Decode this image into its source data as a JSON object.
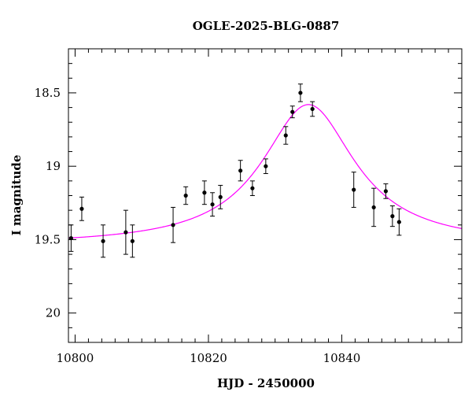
{
  "chart_data": {
    "type": "scatter",
    "title": "OGLE-2025-BLG-0887",
    "xlabel": "HJD - 2450000",
    "ylabel": "I magnitude",
    "xlim": [
      10799,
      10858
    ],
    "ylim": [
      20.2,
      18.2
    ],
    "y_inverted": true,
    "xticks": [
      10800,
      10820,
      10840
    ],
    "yticks": [
      18.5,
      19,
      19.5,
      20
    ],
    "ytick_labels": [
      "18.5",
      "19",
      "19.5",
      "20"
    ],
    "grid": false,
    "colors": {
      "points": "#000000",
      "model": "#ff00ff"
    },
    "series": [
      {
        "kind": "points_with_errorbars",
        "points": [
          {
            "x": 10799.4,
            "y": 19.49,
            "err": 0.09
          },
          {
            "x": 10801.0,
            "y": 19.29,
            "err": 0.08
          },
          {
            "x": 10804.2,
            "y": 19.51,
            "err": 0.11
          },
          {
            "x": 10807.6,
            "y": 19.45,
            "err": 0.15
          },
          {
            "x": 10808.6,
            "y": 19.51,
            "err": 0.11
          },
          {
            "x": 10814.7,
            "y": 19.4,
            "err": 0.12
          },
          {
            "x": 10816.6,
            "y": 19.2,
            "err": 0.06
          },
          {
            "x": 10819.4,
            "y": 19.18,
            "err": 0.08
          },
          {
            "x": 10820.6,
            "y": 19.26,
            "err": 0.08
          },
          {
            "x": 10821.8,
            "y": 19.21,
            "err": 0.08
          },
          {
            "x": 10824.8,
            "y": 19.03,
            "err": 0.07
          },
          {
            "x": 10826.6,
            "y": 19.15,
            "err": 0.05
          },
          {
            "x": 10828.6,
            "y": 19.0,
            "err": 0.05
          },
          {
            "x": 10831.6,
            "y": 18.79,
            "err": 0.06
          },
          {
            "x": 10832.6,
            "y": 18.63,
            "err": 0.04
          },
          {
            "x": 10833.8,
            "y": 18.5,
            "err": 0.06
          },
          {
            "x": 10835.6,
            "y": 18.61,
            "err": 0.05
          },
          {
            "x": 10841.8,
            "y": 19.16,
            "err": 0.12
          },
          {
            "x": 10844.8,
            "y": 19.28,
            "err": 0.13
          },
          {
            "x": 10846.6,
            "y": 19.17,
            "err": 0.05
          },
          {
            "x": 10847.6,
            "y": 19.34,
            "err": 0.07
          },
          {
            "x": 10848.6,
            "y": 19.38,
            "err": 0.09
          }
        ]
      },
      {
        "kind": "model_curve",
        "model": {
          "t0": 10835.0,
          "tE": 8.5,
          "baseline": 19.54,
          "peak": 18.58
        }
      }
    ]
  }
}
